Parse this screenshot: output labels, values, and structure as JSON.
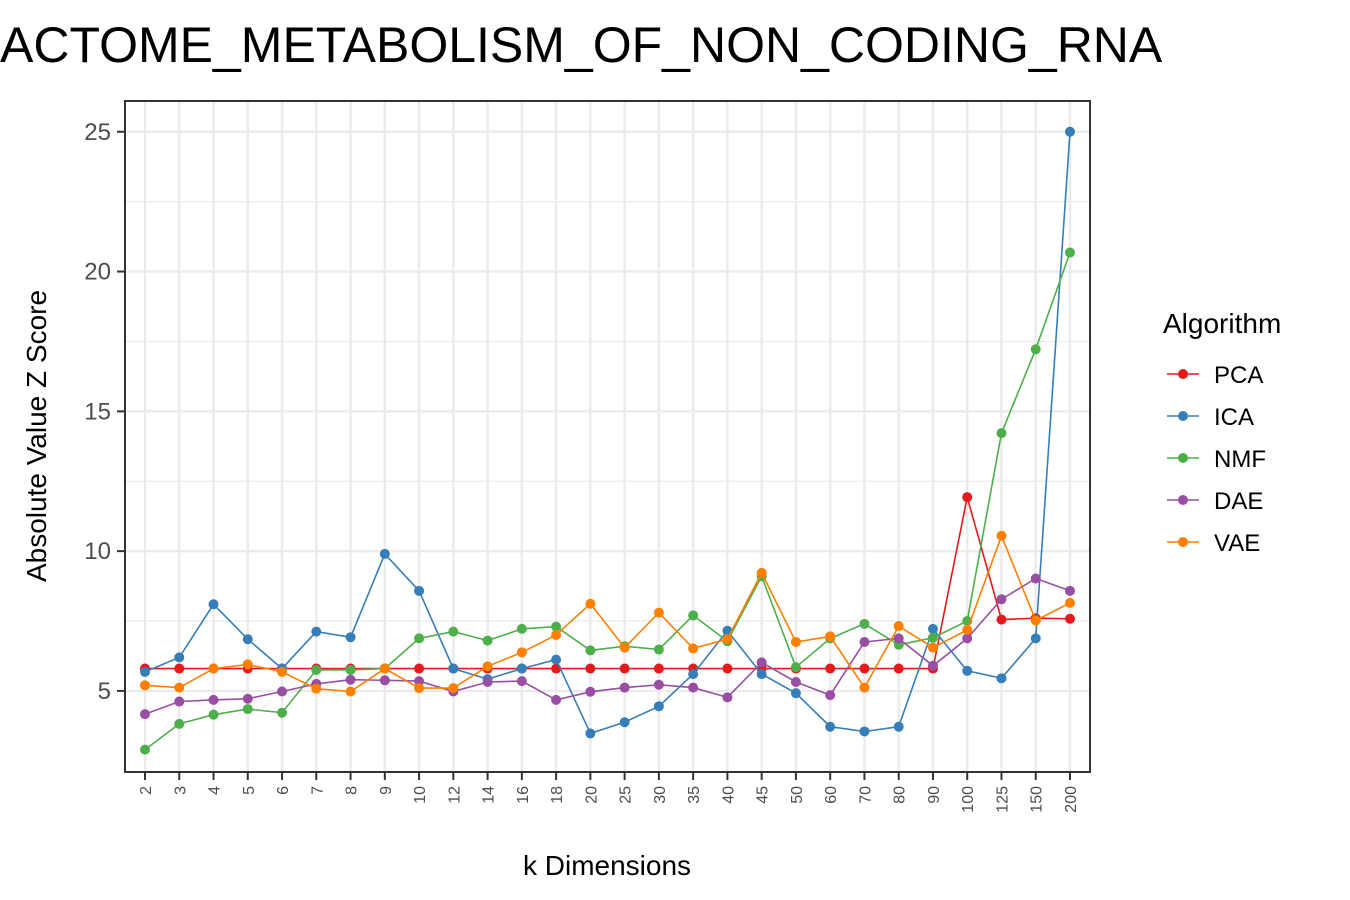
{
  "chart_data": {
    "type": "line",
    "title": "ACTOME_METABOLISM_OF_NON_CODING_RNA",
    "xlabel": "k Dimensions",
    "ylabel": "Absolute Value Z Score",
    "categories": [
      "2",
      "3",
      "4",
      "5",
      "6",
      "7",
      "8",
      "9",
      "10",
      "12",
      "14",
      "16",
      "18",
      "20",
      "25",
      "30",
      "35",
      "40",
      "45",
      "50",
      "60",
      "70",
      "80",
      "90",
      "100",
      "125",
      "150",
      "200"
    ],
    "yticks": [
      5,
      10,
      15,
      20,
      25
    ],
    "ylim": [
      2.1,
      26.1
    ],
    "grid": true,
    "legend": {
      "title": "Algorithm",
      "position": "right"
    },
    "series": [
      {
        "name": "PCA",
        "color": "#E41A1C",
        "values": [
          5.8,
          5.8,
          5.8,
          5.8,
          5.8,
          5.8,
          5.8,
          5.8,
          5.8,
          5.8,
          5.8,
          5.8,
          5.8,
          5.8,
          5.8,
          5.8,
          5.8,
          5.8,
          5.8,
          5.8,
          5.8,
          5.8,
          5.8,
          5.8,
          11.93,
          7.55,
          7.6,
          7.58
        ]
      },
      {
        "name": "ICA",
        "color": "#377EB8",
        "values": [
          5.68,
          6.2,
          8.1,
          6.85,
          5.8,
          7.12,
          6.92,
          9.9,
          8.58,
          5.8,
          5.42,
          5.8,
          6.12,
          3.48,
          3.88,
          4.45,
          5.6,
          7.15,
          5.6,
          4.92,
          3.72,
          3.55,
          3.72,
          7.22,
          5.72,
          5.45,
          6.88,
          25.0
        ]
      },
      {
        "name": "NMF",
        "color": "#4DAF4A",
        "values": [
          2.9,
          3.82,
          4.15,
          4.35,
          4.22,
          5.75,
          5.75,
          5.8,
          6.88,
          7.12,
          6.8,
          7.22,
          7.3,
          6.45,
          6.6,
          6.48,
          7.7,
          6.78,
          9.1,
          5.85,
          6.88,
          7.4,
          6.65,
          6.9,
          7.5,
          14.22,
          17.22,
          20.68
        ]
      },
      {
        "name": "DAE",
        "color": "#984EA3",
        "values": [
          4.17,
          4.62,
          4.68,
          4.72,
          4.98,
          5.25,
          5.4,
          5.38,
          5.35,
          4.98,
          5.32,
          5.35,
          4.68,
          4.97,
          5.12,
          5.22,
          5.12,
          4.77,
          6.02,
          5.32,
          4.85,
          6.75,
          6.88,
          5.9,
          6.88,
          8.28,
          9.02,
          8.58
        ]
      },
      {
        "name": "VAE",
        "color": "#FF7F00",
        "values": [
          5.2,
          5.12,
          5.8,
          5.95,
          5.68,
          5.08,
          4.98,
          5.8,
          5.1,
          5.1,
          5.88,
          6.38,
          7.0,
          8.12,
          6.55,
          7.8,
          6.52,
          6.85,
          9.22,
          6.75,
          6.95,
          5.12,
          7.32,
          6.55,
          7.18,
          10.55,
          7.52,
          8.15
        ]
      }
    ]
  }
}
